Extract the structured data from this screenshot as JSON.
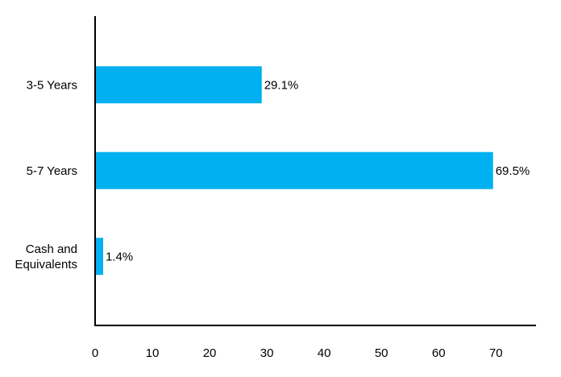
{
  "chart_data": {
    "type": "bar",
    "orientation": "horizontal",
    "categories": [
      "3-5 Years",
      "5-7 Years",
      "Cash and Equivalents"
    ],
    "category_lines": [
      [
        "3-5 Years"
      ],
      [
        "5-7 Years"
      ],
      [
        "Cash and",
        "Equivalents"
      ]
    ],
    "values": [
      29.1,
      69.5,
      1.4
    ],
    "data_labels": [
      "29.1%",
      "69.5%",
      "1.4%"
    ],
    "xlim": [
      0,
      77
    ],
    "x_ticks": [
      0,
      10,
      20,
      30,
      40,
      50,
      60,
      70
    ],
    "x_tick_labels": [
      "0",
      "10",
      "20",
      "30",
      "40",
      "50",
      "60",
      "70"
    ],
    "title": "",
    "xlabel": "",
    "ylabel": "",
    "grid": false,
    "legend": "none",
    "bar_color": "#00B0F0"
  }
}
